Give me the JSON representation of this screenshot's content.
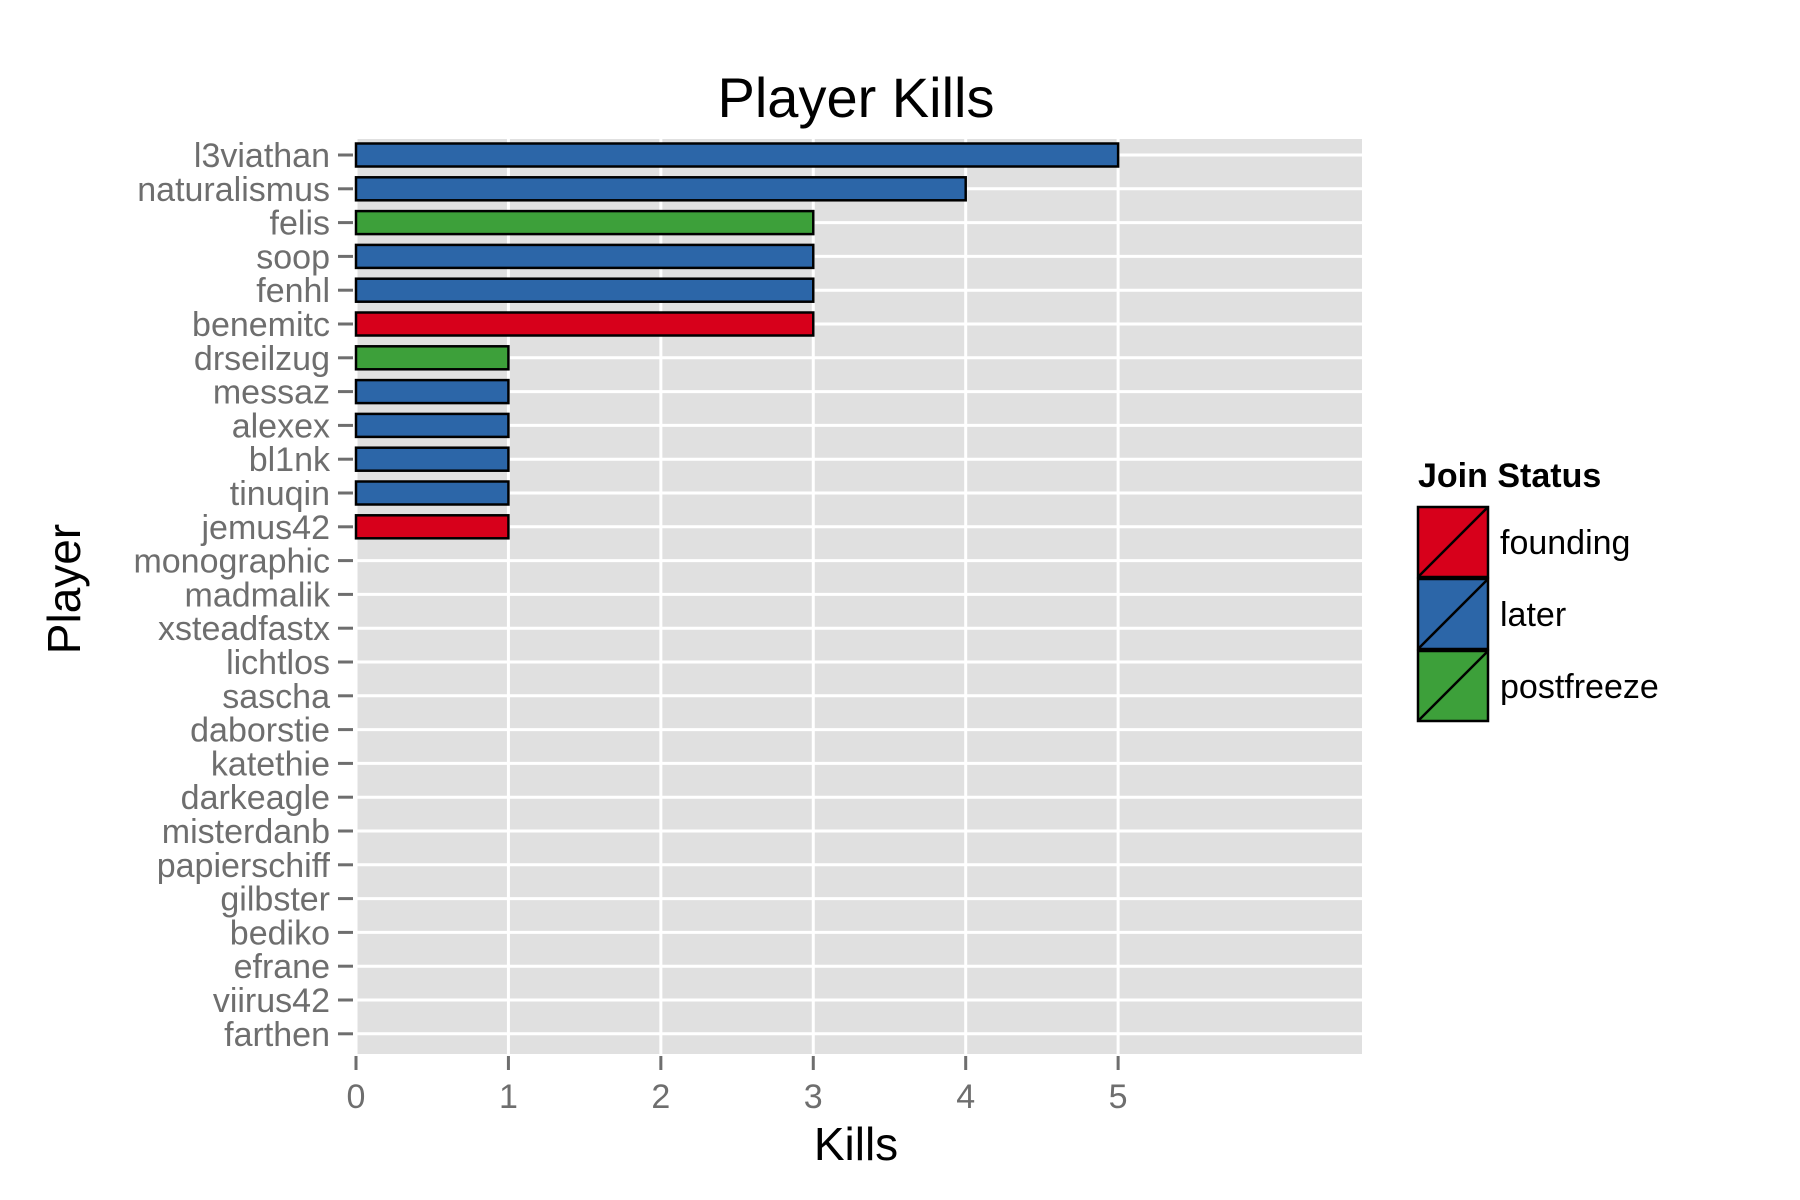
{
  "chart_data": {
    "type": "bar",
    "orientation": "horizontal",
    "title": "Player Kills",
    "xlabel": "Kills",
    "ylabel": "Player",
    "xlim": [
      0,
      6.6
    ],
    "xticks": [
      0,
      1,
      2,
      3,
      4,
      5
    ],
    "grid": true,
    "legend": {
      "title": "Join Status",
      "placement": "right",
      "entries": [
        {
          "label": "founding",
          "color": "#d7001b"
        },
        {
          "label": "later",
          "color": "#2c66a8"
        },
        {
          "label": "postfreeze",
          "color": "#3da03a"
        }
      ]
    },
    "categories": [
      "l3viathan",
      "naturalismus",
      "felis",
      "soop",
      "fenhl",
      "benemitc",
      "drseilzug",
      "messaz",
      "alexex",
      "bl1nk",
      "tinuqin",
      "jemus42",
      "monographic",
      "madmalik",
      "xsteadfastx",
      "lichtlos",
      "sascha",
      "daborstie",
      "katethie",
      "darkeagle",
      "misterdanb",
      "papierschiff",
      "gilbster",
      "bediko",
      "efrane",
      "viirus42",
      "farthen"
    ],
    "values": [
      5,
      4,
      3,
      3,
      3,
      3,
      1,
      1,
      1,
      1,
      1,
      1,
      0,
      0,
      0,
      0,
      0,
      0,
      0,
      0,
      0,
      0,
      0,
      0,
      0,
      0,
      0
    ],
    "status": [
      "later",
      "later",
      "postfreeze",
      "later",
      "later",
      "founding",
      "postfreeze",
      "later",
      "later",
      "later",
      "later",
      "founding",
      "later",
      "later",
      "later",
      "later",
      "later",
      "later",
      "later",
      "later",
      "later",
      "later",
      "later",
      "later",
      "later",
      "later",
      "later"
    ]
  },
  "colors": {
    "panel_background": "#e0e0e0",
    "grid": "#ffffff",
    "bar_outline": "#000000",
    "tick_text": "#6e6e6e"
  }
}
